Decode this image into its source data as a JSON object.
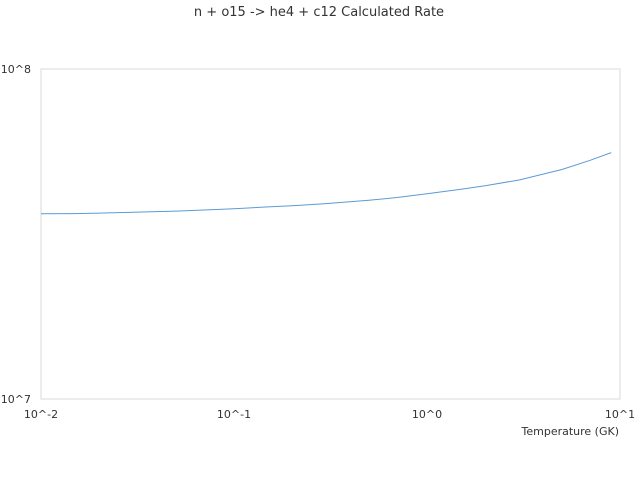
{
  "chart_data": {
    "type": "line",
    "title": "n + o15 -> he4 + c12 Calculated Rate",
    "xlabel": "Temperature (GK)",
    "ylabel": "",
    "x_scale": "log",
    "y_scale": "log",
    "xlim": [
      0.01,
      10
    ],
    "ylim": [
      10000000,
      100000000
    ],
    "x_tick_labels": [
      "10^-2",
      "10^-1",
      "10^0",
      "10^1"
    ],
    "y_tick_labels": [
      "10^7",
      "10^8"
    ],
    "grid": false,
    "legend": "none",
    "line_color": "#5b9bd5",
    "series": [
      {
        "x": [
          0.01,
          0.015,
          0.02,
          0.03,
          0.05,
          0.07,
          0.1,
          0.15,
          0.2,
          0.3,
          0.5,
          0.7,
          1.0,
          1.5,
          2.0,
          3.0,
          5.0,
          7.0,
          9.0
        ],
        "values": [
          36400000,
          36450000,
          36600000,
          36800000,
          37100000,
          37400000,
          37700000,
          38200000,
          38500000,
          39100000,
          40000000,
          40800000,
          41900000,
          43200000,
          44300000,
          46100000,
          49600000,
          52900000,
          55800000
        ]
      }
    ]
  }
}
